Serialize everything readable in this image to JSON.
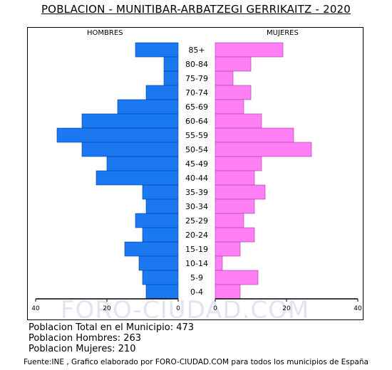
{
  "title": "POBLACION - MUNITIBAR-ARBATZEGI GERRIKAITZ - 2020",
  "watermark": "FORO-CIUDAD.COM",
  "summary": {
    "total": "Poblacion Total en el Municipio: 473",
    "men": "Poblacion Hombres: 263",
    "women": "Poblacion Mujeres: 210"
  },
  "source": "Fuente:INE , Grafico elaborado por FORO-CIUDAD.COM para todos los municipios de España",
  "colors": {
    "men": "#1a78f0",
    "women": "#ff7ff5"
  },
  "chart_data": {
    "type": "bar",
    "orientation": "horizontal",
    "title": "POBLACION - MUNITIBAR-ARBATZEGI GERRIKAITZ - 2020",
    "left_label": "HOMBRES",
    "right_label": "MUJERES",
    "categories": [
      "85+",
      "80-84",
      "75-79",
      "70-74",
      "65-69",
      "60-64",
      "55-59",
      "50-54",
      "45-49",
      "40-44",
      "35-39",
      "30-34",
      "25-29",
      "20-24",
      "15-19",
      "10-14",
      "5-9",
      "0-4"
    ],
    "series": [
      {
        "name": "HOMBRES",
        "values": [
          12,
          4,
          4,
          9,
          17,
          27,
          34,
          27,
          20,
          23,
          10,
          9,
          12,
          10,
          15,
          11,
          10,
          9
        ]
      },
      {
        "name": "MUJERES",
        "values": [
          19,
          10,
          5,
          10,
          8,
          13,
          22,
          27,
          13,
          11,
          14,
          11,
          8,
          11,
          7,
          2,
          12,
          7
        ]
      }
    ],
    "xlim": [
      0,
      40
    ],
    "ticks_left": [
      "40",
      "20",
      "0"
    ],
    "ticks_right": [
      "0",
      "20",
      "40"
    ],
    "grid": false
  }
}
